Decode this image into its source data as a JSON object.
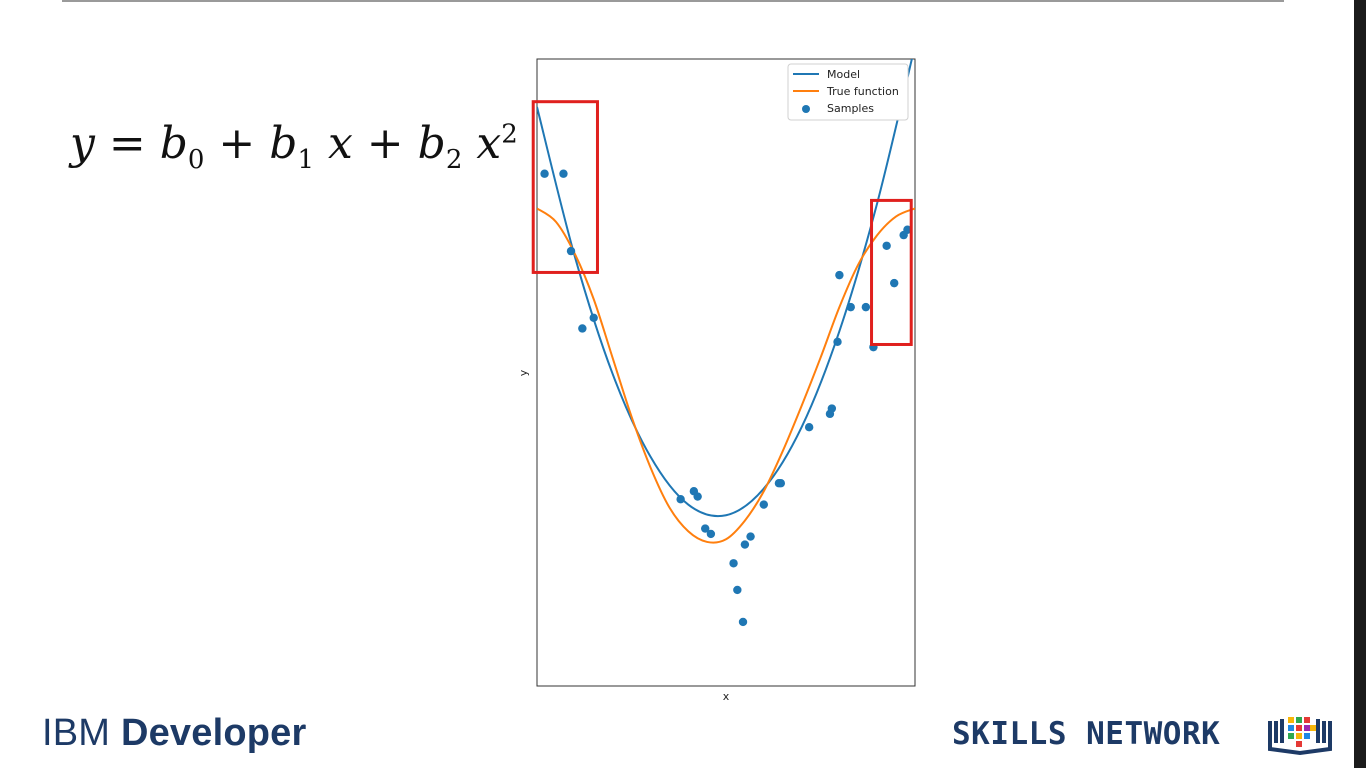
{
  "slide": {
    "formula": {
      "y": "y",
      "eq": " = ",
      "b": "b",
      "plus": " + ",
      "x": "x",
      "sub0": "0",
      "sub1": "1",
      "sub2": "2",
      "sup2": "2"
    },
    "brand_left_prefix": "IBM",
    "brand_left_name": "Developer",
    "brand_right": "SKILLS NETWORK"
  },
  "highlight_color": "#e0201e",
  "chart_data": {
    "type": "scatter",
    "title": "",
    "xlabel": "x",
    "ylabel": "y",
    "xlim": [
      0,
      1
    ],
    "ylim": [
      -1.1,
      1.25
    ],
    "grid": false,
    "legend_placement": "top-right",
    "legend": [
      "Model",
      "True function",
      "Samples"
    ],
    "series": [
      {
        "name": "Model",
        "kind": "line",
        "color": "#1f77b4",
        "x": [
          0,
          0.1,
          0.2,
          0.3,
          0.4,
          0.5,
          0.6,
          0.7,
          0.8,
          0.9,
          1.0
        ],
        "y": [
          1.07,
          0.51,
          0.07,
          -0.24,
          -0.42,
          -0.46,
          -0.36,
          -0.13,
          0.23,
          0.71,
          1.3
        ]
      },
      {
        "name": "True function",
        "kind": "line",
        "color": "#ff7f0e",
        "x": [
          0,
          0.05,
          0.1,
          0.15,
          0.2,
          0.25,
          0.3,
          0.35,
          0.4,
          0.45,
          0.5,
          0.55,
          0.6,
          0.65,
          0.7,
          0.75,
          0.8,
          0.85,
          0.9,
          0.95,
          1.0
        ],
        "y": [
          0.69,
          0.64,
          0.52,
          0.35,
          0.13,
          -0.09,
          -0.28,
          -0.43,
          -0.52,
          -0.56,
          -0.55,
          -0.48,
          -0.37,
          -0.22,
          -0.05,
          0.13,
          0.32,
          0.48,
          0.59,
          0.66,
          0.69
        ]
      },
      {
        "name": "Samples",
        "kind": "scatter",
        "color": "#1f77b4",
        "x": [
          0.02,
          0.07,
          0.09,
          0.12,
          0.15,
          0.38,
          0.415,
          0.425,
          0.445,
          0.46,
          0.52,
          0.53,
          0.545,
          0.55,
          0.565,
          0.6,
          0.645,
          0.64,
          0.72,
          0.775,
          0.78,
          0.795,
          0.8,
          0.83,
          0.87,
          0.89,
          0.925,
          0.945,
          0.98,
          0.97
        ],
        "y": [
          0.82,
          0.82,
          0.53,
          0.24,
          0.28,
          -0.4,
          -0.37,
          -0.39,
          -0.51,
          -0.53,
          -0.64,
          -0.74,
          -0.86,
          -0.57,
          -0.54,
          -0.42,
          -0.34,
          -0.34,
          -0.13,
          -0.08,
          -0.06,
          0.19,
          0.44,
          0.32,
          0.32,
          0.17,
          0.55,
          0.41,
          0.61,
          0.59
        ]
      }
    ],
    "highlight_boxes": [
      {
        "x_range": [
          -0.01,
          0.16
        ],
        "y_range": [
          0.45,
          1.09
        ]
      },
      {
        "x_range": [
          0.885,
          0.99
        ],
        "y_range": [
          0.18,
          0.72
        ]
      }
    ]
  }
}
